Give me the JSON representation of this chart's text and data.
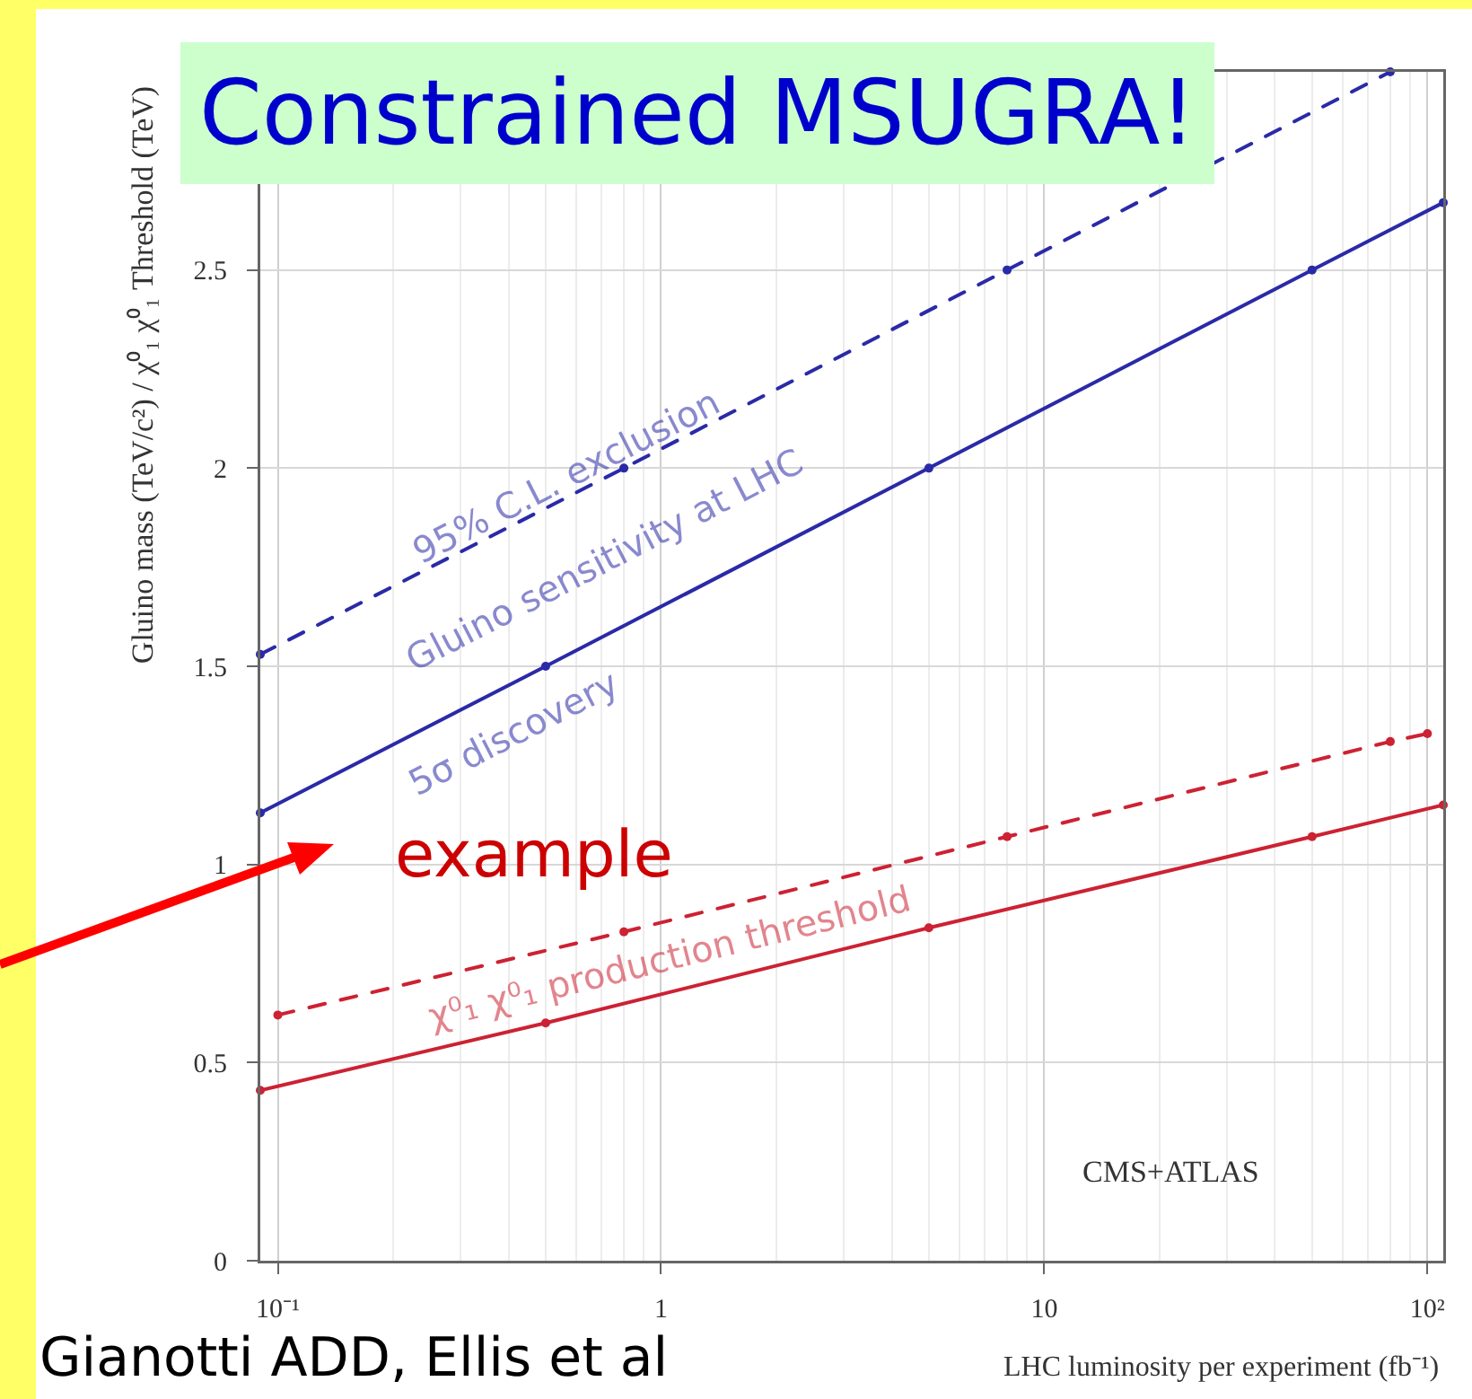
{
  "chart_data": {
    "type": "line",
    "title": "Constrained MSUGRA!",
    "xlabel": "LHC luminosity per experiment (fb⁻¹)",
    "ylabel": "Gluino mass (TeV/c²) / χ⁰₁ χ⁰₁ Threshold (TeV)",
    "series": [
      {
        "color": "#2a2aa8",
        "line_style": "dashed",
        "x": [
          0.09,
          0.8,
          8,
          80
        ],
        "values": [
          1.53,
          2.0,
          2.5,
          3.0
        ]
      },
      {
        "color": "#2a2aa8",
        "line_style": "solid",
        "x": [
          0.09,
          0.5,
          5,
          50,
          110
        ],
        "values": [
          1.13,
          1.5,
          2.0,
          2.5,
          2.67
        ]
      },
      {
        "color": "#cc2233",
        "line_style": "dashed",
        "x": [
          0.1,
          0.8,
          8,
          80,
          100
        ],
        "values": [
          0.62,
          0.83,
          1.07,
          1.31,
          1.33
        ]
      },
      {
        "color": "#cc2233",
        "line_style": "solid",
        "x": [
          0.09,
          0.5,
          5,
          50,
          110
        ],
        "values": [
          0.43,
          0.6,
          0.84,
          1.07,
          1.15
        ]
      }
    ],
    "xlim": [
      0.09,
      110
    ],
    "ylim": [
      0,
      3
    ],
    "xticks": [
      {
        "value": 0.1,
        "label": "10⁻¹"
      },
      1,
      10,
      {
        "value": 100,
        "label": "10²"
      }
    ],
    "yticks": [
      0,
      0.5,
      1,
      1.5,
      2,
      2.5
    ],
    "log": "x",
    "grid": true,
    "marker": "circle",
    "annotations": [
      "95% C.L. exclusion",
      "Gluino sensitivity at LHC",
      "5σ discovery",
      "χ⁰₁ χ⁰₁ production threshold",
      "example",
      "CMS+ATLAS",
      "Gianotti ADD, Ellis et al"
    ]
  }
}
